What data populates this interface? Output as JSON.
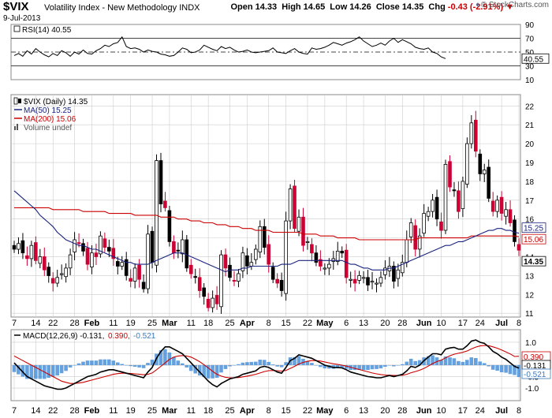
{
  "header": {
    "symbol": "$VIX",
    "description": "Volatility Index - New Methodology INDX",
    "date": "9-Jul-2013",
    "open_label": "Open",
    "open": "14.33",
    "high_label": "High",
    "high": "14.65",
    "low_label": "Low",
    "low": "14.26",
    "close_label": "Close",
    "close": "14.35",
    "chg_label": "Chg",
    "chg": "-0.43 (-2.91%)",
    "chg_icon": "down-triangle-icon",
    "credit": "© StockCharts.com"
  },
  "chart_data": [
    {
      "type": "line",
      "panel": "rsi",
      "legend": "RSI(14) 40.55",
      "ylim": [
        10,
        90
      ],
      "ytick_labels": [
        "90",
        "70",
        "50",
        "30",
        "10"
      ],
      "ref_lines": [
        70,
        50,
        30
      ],
      "last_value_tag": "40.55",
      "values": [
        45,
        48,
        44,
        52,
        47,
        55,
        50,
        46,
        43,
        48,
        45,
        52,
        49,
        44,
        50,
        47,
        53,
        48,
        47,
        52,
        55,
        60,
        58,
        62,
        64,
        72,
        58,
        55,
        56,
        54,
        50,
        53,
        51,
        50,
        47,
        46,
        44,
        45,
        50,
        56,
        54,
        49,
        50,
        53,
        60,
        57,
        54,
        52,
        58,
        55,
        57,
        53,
        50,
        51,
        53,
        50,
        49,
        50,
        51,
        52,
        56,
        50,
        49,
        48,
        52,
        55,
        50,
        48,
        47,
        56,
        54,
        55,
        57,
        60,
        64,
        62,
        60,
        63,
        65,
        68,
        72,
        66,
        62,
        58,
        60,
        63,
        60,
        66,
        70,
        64,
        68,
        65,
        62,
        57,
        55,
        54,
        56,
        50,
        48,
        43,
        40.55
      ]
    },
    {
      "type": "candlestick",
      "panel": "price",
      "legend": [
        {
          "label": "$VIX (Daily) 14.35",
          "color": "#000000",
          "icon": "candle-icon"
        },
        {
          "label": "MA(50) 15.25",
          "color": "#1a237e",
          "icon": "line-swatch-icon"
        },
        {
          "label": "MA(200) 15.06",
          "color": "#cc0000",
          "icon": "line-swatch-icon"
        },
        {
          "label": "Volume undef",
          "color": "#555555",
          "icon": "bars-icon"
        }
      ],
      "ylim": [
        10.8,
        22.6
      ],
      "ytick_labels": [
        "22",
        "21",
        "20",
        "19",
        "18",
        "17",
        "16",
        "15",
        "14",
        "13",
        "12",
        "11"
      ],
      "last_value_tags": [
        {
          "label": "15.25",
          "value": 15.25,
          "bg": "#ffffff",
          "fg": "#1a237e"
        },
        {
          "label": "15.06",
          "value": 15.06,
          "bg": "#ffffff",
          "fg": "#cc0000"
        },
        {
          "label": "14.35",
          "value": 14.35,
          "bg": "#ffffff",
          "fg": "#000000",
          "bold": true
        }
      ],
      "close": [
        14.4,
        14.7,
        14.2,
        13.9,
        14.6,
        13.8,
        14.0,
        13.3,
        13.0,
        12.6,
        12.9,
        13.1,
        13.4,
        14.1,
        14.9,
        14.7,
        14.3,
        13.6,
        14.2,
        14.0,
        15.1,
        14.5,
        14.3,
        13.9,
        13.5,
        13.7,
        13.0,
        12.7,
        13.4,
        12.8,
        12.3,
        15.2,
        13.7,
        19.1,
        16.8,
        16.6,
        14.8,
        14.2,
        14.3,
        14.9,
        13.4,
        13.1,
        12.9,
        12.2,
        11.9,
        11.3,
        11.8,
        11.5,
        14.1,
        13.4,
        12.9,
        12.7,
        13.1,
        14.2,
        13.5,
        13.7,
        14.4,
        15.6,
        14.5,
        13.6,
        12.8,
        12.6,
        12.2,
        15.9,
        17.6,
        15.5,
        16.1,
        14.6,
        14.8,
        14.2,
        13.7,
        13.5,
        13.4,
        13.6,
        13.9,
        14.3,
        14.2,
        12.9,
        12.8,
        12.6,
        13.0,
        12.9,
        12.5,
        12.7,
        12.6,
        12.9,
        13.4,
        13.5,
        12.7,
        13.3,
        13.7,
        14.9,
        15.8,
        14.4,
        15.1,
        16.3,
        16.4,
        17.0,
        16.0,
        15.4,
        18.9,
        17.7,
        17.5,
        16.4,
        18.0,
        20.0,
        21.1,
        19.6,
        18.4,
        18.6,
        17.1,
        16.4,
        17.0,
        16.3,
        16.5,
        15.8,
        14.8,
        14.35
      ],
      "ma50": [
        17.5,
        17.3,
        17.1,
        16.9,
        16.7,
        16.5,
        16.2,
        16.0,
        15.8,
        15.6,
        15.3,
        15.1,
        14.9,
        14.8,
        14.7,
        14.6,
        14.6,
        14.5,
        14.4,
        14.4,
        14.3,
        14.2,
        14.1,
        14.0,
        13.9,
        13.8,
        13.7,
        13.7,
        13.6,
        13.6,
        13.6,
        13.6,
        13.7,
        13.8,
        13.9,
        14.0,
        14.1,
        14.2,
        14.2,
        14.2,
        14.1,
        14.0,
        13.9,
        13.8,
        13.7,
        13.6,
        13.5,
        13.4,
        13.3,
        13.2,
        13.3,
        13.3,
        13.3,
        13.4,
        13.4,
        13.5,
        13.5,
        13.5,
        13.5,
        13.5,
        13.5,
        13.5,
        13.6,
        13.6,
        13.6,
        13.7,
        13.8,
        13.8,
        13.8,
        13.8,
        13.8,
        13.8,
        13.8,
        13.8,
        13.8,
        13.8,
        13.8,
        13.7,
        13.6,
        13.6,
        13.5,
        13.4,
        13.4,
        13.3,
        13.3,
        13.3,
        13.3,
        13.4,
        13.4,
        13.5,
        13.6,
        13.7,
        13.8,
        13.9,
        14.0,
        14.1,
        14.2,
        14.3,
        14.4,
        14.5,
        14.6,
        14.6,
        14.7,
        14.8,
        14.8,
        14.9,
        15.0,
        15.1,
        15.2,
        15.3,
        15.4,
        15.4,
        15.5,
        15.5,
        15.4,
        15.4,
        15.3,
        15.25
      ],
      "ma200": [
        16.6,
        16.6,
        16.6,
        16.6,
        16.6,
        16.6,
        16.6,
        16.6,
        16.6,
        16.5,
        16.5,
        16.5,
        16.5,
        16.5,
        16.5,
        16.5,
        16.4,
        16.4,
        16.4,
        16.4,
        16.4,
        16.4,
        16.3,
        16.3,
        16.3,
        16.3,
        16.3,
        16.3,
        16.2,
        16.2,
        16.2,
        16.2,
        16.2,
        16.2,
        16.1,
        16.1,
        16.1,
        16.1,
        16.0,
        16.0,
        16.0,
        15.9,
        15.9,
        15.9,
        15.8,
        15.8,
        15.8,
        15.7,
        15.7,
        15.7,
        15.6,
        15.6,
        15.6,
        15.5,
        15.5,
        15.5,
        15.4,
        15.4,
        15.4,
        15.4,
        15.3,
        15.3,
        15.3,
        15.3,
        15.3,
        15.3,
        15.3,
        15.2,
        15.2,
        15.2,
        15.2,
        15.1,
        15.1,
        15.1,
        15.1,
        15.0,
        15.0,
        15.0,
        15.0,
        15.0,
        14.9,
        14.9,
        14.9,
        14.9,
        14.9,
        14.9,
        14.9,
        14.9,
        14.9,
        14.9,
        14.9,
        14.9,
        14.9,
        14.9,
        15.0,
        15.0,
        15.0,
        15.0,
        15.0,
        15.0,
        15.0,
        15.0,
        15.0,
        15.0,
        15.0,
        15.0,
        15.1,
        15.1,
        15.1,
        15.1,
        15.1,
        15.1,
        15.1,
        15.1,
        15.1,
        15.1,
        15.1,
        15.06
      ]
    },
    {
      "type": "line",
      "panel": "macd",
      "legend": [
        {
          "label": "MACD(12,26,9) -0.131,",
          "color": "#000000"
        },
        {
          "label": "0.390,",
          "color": "#cc0000"
        },
        {
          "label": "-0.521",
          "color": "#3a7ac0"
        }
      ],
      "ylim": [
        -1.55,
        1.55
      ],
      "ytick_labels": [
        "1.0",
        "0.5",
        "-0.5",
        "-1.0"
      ],
      "last_value_tags": [
        {
          "label": "0.390",
          "value": 0.39
        },
        {
          "label": "-0.131",
          "value": -0.131
        },
        {
          "label": "-0.521",
          "value": -0.521
        }
      ],
      "macd": [
        0.1,
        -0.1,
        -0.3,
        -0.5,
        -0.6,
        -0.7,
        -0.8,
        -0.9,
        -0.95,
        -1.0,
        -1.05,
        -1.05,
        -1.0,
        -0.9,
        -0.8,
        -0.7,
        -0.6,
        -0.5,
        -0.45,
        -0.4,
        -0.3,
        -0.25,
        -0.2,
        -0.2,
        -0.25,
        -0.3,
        -0.35,
        -0.4,
        -0.45,
        -0.5,
        -0.55,
        -0.3,
        -0.1,
        0.3,
        0.6,
        0.8,
        0.8,
        0.7,
        0.6,
        0.5,
        0.3,
        0.1,
        -0.1,
        -0.3,
        -0.5,
        -0.7,
        -0.85,
        -0.95,
        -0.8,
        -0.7,
        -0.6,
        -0.55,
        -0.5,
        -0.4,
        -0.35,
        -0.3,
        -0.25,
        -0.1,
        -0.05,
        -0.1,
        -0.2,
        -0.3,
        -0.35,
        -0.1,
        0.2,
        0.3,
        0.45,
        0.4,
        0.35,
        0.3,
        0.2,
        0.1,
        0.0,
        -0.05,
        -0.1,
        -0.1,
        -0.12,
        -0.2,
        -0.3,
        -0.35,
        -0.4,
        -0.45,
        -0.5,
        -0.52,
        -0.55,
        -0.55,
        -0.5,
        -0.45,
        -0.5,
        -0.45,
        -0.4,
        -0.25,
        -0.05,
        -0.1,
        0.0,
        0.2,
        0.35,
        0.5,
        0.5,
        0.45,
        0.7,
        0.75,
        0.78,
        0.7,
        0.7,
        0.85,
        1.05,
        1.1,
        1.0,
        0.95,
        0.8,
        0.6,
        0.5,
        0.35,
        0.25,
        0.1,
        -0.05,
        -0.131
      ],
      "signal": [
        0.4,
        0.3,
        0.2,
        0.1,
        0.0,
        -0.1,
        -0.2,
        -0.3,
        -0.4,
        -0.5,
        -0.6,
        -0.7,
        -0.75,
        -0.8,
        -0.8,
        -0.78,
        -0.75,
        -0.7,
        -0.65,
        -0.6,
        -0.55,
        -0.5,
        -0.45,
        -0.4,
        -0.37,
        -0.35,
        -0.35,
        -0.36,
        -0.38,
        -0.4,
        -0.42,
        -0.4,
        -0.34,
        -0.2,
        -0.05,
        0.1,
        0.25,
        0.35,
        0.4,
        0.42,
        0.4,
        0.35,
        0.26,
        0.15,
        0.02,
        -0.12,
        -0.27,
        -0.4,
        -0.48,
        -0.53,
        -0.55,
        -0.55,
        -0.54,
        -0.51,
        -0.48,
        -0.44,
        -0.4,
        -0.34,
        -0.28,
        -0.24,
        -0.23,
        -0.24,
        -0.26,
        -0.23,
        -0.14,
        -0.05,
        0.05,
        0.12,
        0.17,
        0.2,
        0.2,
        0.18,
        0.14,
        0.1,
        0.06,
        0.03,
        0.0,
        -0.04,
        -0.09,
        -0.14,
        -0.19,
        -0.24,
        -0.29,
        -0.34,
        -0.38,
        -0.41,
        -0.43,
        -0.44,
        -0.45,
        -0.45,
        -0.44,
        -0.4,
        -0.33,
        -0.28,
        -0.22,
        -0.14,
        -0.04,
        0.07,
        0.16,
        0.22,
        0.32,
        0.41,
        0.48,
        0.52,
        0.56,
        0.62,
        0.71,
        0.79,
        0.84,
        0.86,
        0.85,
        0.8,
        0.74,
        0.66,
        0.58,
        0.49,
        0.38,
        0.39
      ]
    }
  ],
  "x_axis": {
    "labels": [
      {
        "text": "7",
        "bold": false
      },
      {
        "text": "14",
        "bold": false
      },
      {
        "text": "22",
        "bold": false
      },
      {
        "text": "28",
        "bold": false
      },
      {
        "text": "Feb",
        "bold": true
      },
      {
        "text": "11",
        "bold": false
      },
      {
        "text": "19",
        "bold": false
      },
      {
        "text": "25",
        "bold": false
      },
      {
        "text": "Mar",
        "bold": true
      },
      {
        "text": "11",
        "bold": false
      },
      {
        "text": "18",
        "bold": false
      },
      {
        "text": "25",
        "bold": false
      },
      {
        "text": "Apr",
        "bold": true
      },
      {
        "text": "8",
        "bold": false
      },
      {
        "text": "15",
        "bold": false
      },
      {
        "text": "22",
        "bold": false
      },
      {
        "text": "May",
        "bold": true
      },
      {
        "text": "6",
        "bold": false
      },
      {
        "text": "13",
        "bold": false
      },
      {
        "text": "20",
        "bold": false
      },
      {
        "text": "28",
        "bold": false
      },
      {
        "text": "Jun",
        "bold": true
      },
      {
        "text": "10",
        "bold": false
      },
      {
        "text": "17",
        "bold": false
      },
      {
        "text": "24",
        "bold": false
      },
      {
        "text": "Jul",
        "bold": true
      },
      {
        "text": "8",
        "bold": false
      }
    ]
  },
  "colors": {
    "up_candle": "#ffffff",
    "down_candle": "#000000",
    "red_candle": "#cc0033",
    "ma50": "#1a237e",
    "ma200": "#cc0000",
    "rsi": "#000000",
    "macd": "#000000",
    "signal": "#cc0000",
    "histogram": "#4a90d9",
    "grid": "#cccccc"
  }
}
